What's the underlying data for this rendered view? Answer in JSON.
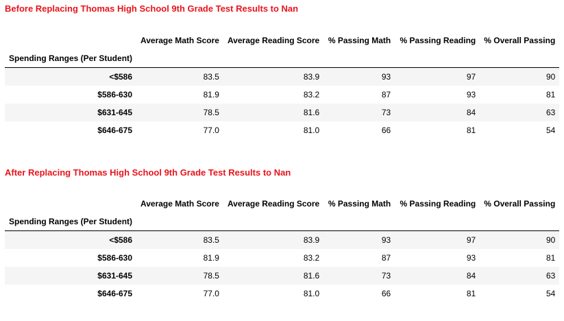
{
  "sections": [
    {
      "title": "Before Replacing Thomas High School 9th Grade Test Results to Nan",
      "index_name": "Spending Ranges (Per Student)",
      "columns": [
        "Average Math Score",
        "Average Reading Score",
        "% Passing Math",
        "% Passing Reading",
        "% Overall Passing"
      ],
      "rows": [
        {
          "label": "<$586",
          "values": [
            "83.5",
            "83.9",
            "93",
            "97",
            "90"
          ]
        },
        {
          "label": "$586-630",
          "values": [
            "81.9",
            "83.2",
            "87",
            "93",
            "81"
          ]
        },
        {
          "label": "$631-645",
          "values": [
            "78.5",
            "81.6",
            "73",
            "84",
            "63"
          ]
        },
        {
          "label": "$646-675",
          "values": [
            "77.0",
            "81.0",
            "66",
            "81",
            "54"
          ]
        }
      ]
    },
    {
      "title": "After Replacing Thomas High School 9th Grade Test Results to Nan",
      "index_name": "Spending Ranges (Per Student)",
      "columns": [
        "Average Math Score",
        "Average Reading Score",
        "% Passing Math",
        "% Passing Reading",
        "% Overall Passing"
      ],
      "rows": [
        {
          "label": "<$586",
          "values": [
            "83.5",
            "83.9",
            "93",
            "97",
            "90"
          ]
        },
        {
          "label": "$586-630",
          "values": [
            "81.9",
            "83.2",
            "87",
            "93",
            "81"
          ]
        },
        {
          "label": "$631-645",
          "values": [
            "78.5",
            "81.6",
            "73",
            "84",
            "63"
          ]
        },
        {
          "label": "$646-675",
          "values": [
            "77.0",
            "81.0",
            "66",
            "81",
            "54"
          ]
        }
      ]
    }
  ],
  "colors": {
    "title": "#e8141b",
    "stripe": "#f5f5f5"
  }
}
